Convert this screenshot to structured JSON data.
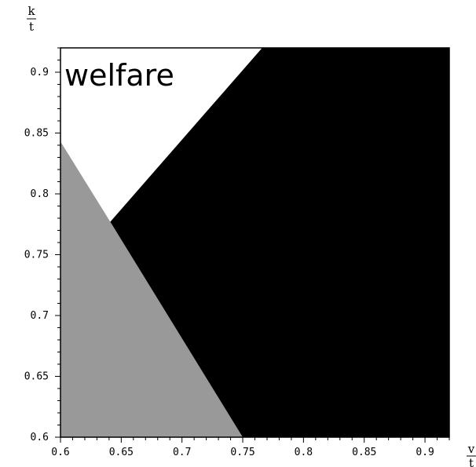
{
  "chart_data": {
    "type": "area",
    "title": "",
    "xlabel": {
      "numerator": "v",
      "denominator": "t"
    },
    "ylabel": {
      "numerator": "k",
      "denominator": "t"
    },
    "xlim": [
      0.6,
      0.92
    ],
    "ylim": [
      0.6,
      0.92
    ],
    "x_ticks": [
      "0.6",
      "0.65",
      "0.7",
      "0.75",
      "0.8",
      "0.85",
      "0.9"
    ],
    "y_ticks": [
      "0.6",
      "0.65",
      "0.7",
      "0.75",
      "0.8",
      "0.85",
      "0.9"
    ],
    "annotations": [
      "welfare"
    ],
    "regions": [
      {
        "fill": "#ffffff",
        "polygon": [
          [
            0.6,
            0.92
          ],
          [
            0.766,
            0.92
          ],
          [
            0.641,
            0.777
          ],
          [
            0.6,
            0.843
          ]
        ]
      },
      {
        "fill": "#999999",
        "polygon": [
          [
            0.6,
            0.6
          ],
          [
            0.6,
            0.843
          ],
          [
            0.641,
            0.777
          ],
          [
            0.75,
            0.6
          ]
        ]
      },
      {
        "fill": "#000000",
        "polygon": [
          [
            0.641,
            0.777
          ],
          [
            0.766,
            0.92
          ],
          [
            0.92,
            0.92
          ],
          [
            0.92,
            0.6
          ],
          [
            0.75,
            0.6
          ]
        ]
      }
    ],
    "grid": false,
    "legend": "none"
  }
}
